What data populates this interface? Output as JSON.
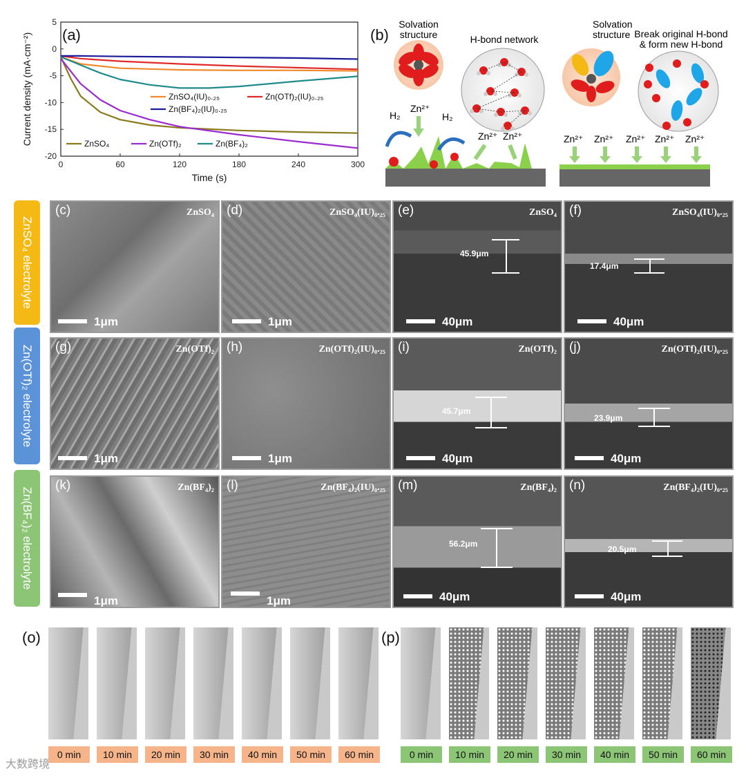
{
  "panels": {
    "a": "(a)",
    "b": "(b)",
    "c": "(c)",
    "d": "(d)",
    "e": "(e)",
    "f": "(f)",
    "g": "(g)",
    "h": "(h)",
    "i": "(i)",
    "j": "(j)",
    "k": "(k)",
    "l": "(l)",
    "m": "(m)",
    "n": "(n)",
    "o": "(o)",
    "p": "(p)"
  },
  "chart_data": {
    "type": "line",
    "xlabel": "Time (s)",
    "ylabel": "Current density (mA·cm⁻²)",
    "xlim": [
      0,
      300
    ],
    "ylim": [
      -20,
      5
    ],
    "xticks": [
      "0",
      "60",
      "120",
      "180",
      "240",
      "300"
    ],
    "yticks": [
      "5",
      "0",
      "-5",
      "-10",
      "-15",
      "-20"
    ],
    "legend": [
      "ZnSO₄(IU)₀.₂₅",
      "Zn(OTf)₂(IU)₀.₂₅",
      "Zn(BF₄)₂(IU)₀.₂₅",
      "ZnSO₄",
      "Zn(OTf)₂",
      "Zn(BF₄)₂"
    ],
    "series": [
      {
        "name": "ZnSO4(IU)0.25",
        "color": "#f0892a",
        "x": [
          0,
          20,
          60,
          120,
          180,
          240,
          300
        ],
        "y": [
          -1.5,
          -2.8,
          -3.6,
          -3.9,
          -4.0,
          -4.0,
          -4.1
        ]
      },
      {
        "name": "Zn(OTf)2(IU)0.25",
        "color": "#e02a2a",
        "x": [
          0,
          20,
          60,
          120,
          180,
          240,
          300
        ],
        "y": [
          -1.3,
          -1.8,
          -2.3,
          -2.8,
          -3.2,
          -3.5,
          -3.8
        ]
      },
      {
        "name": "Zn(BF4)2(IU)0.25",
        "color": "#1a1a9a",
        "x": [
          0,
          20,
          60,
          120,
          180,
          240,
          300
        ],
        "y": [
          -1.3,
          -1.3,
          -1.4,
          -1.5,
          -1.6,
          -1.7,
          -1.9
        ]
      },
      {
        "name": "ZnSO4",
        "color": "#8a7a1a",
        "x": [
          0,
          10,
          20,
          40,
          60,
          90,
          120,
          180,
          240,
          300
        ],
        "y": [
          -1.5,
          -5.5,
          -8.8,
          -11.8,
          -13.2,
          -14.2,
          -14.7,
          -15.2,
          -15.5,
          -15.7
        ]
      },
      {
        "name": "Zn(OTf)2",
        "color": "#9a2ad0",
        "x": [
          0,
          20,
          40,
          60,
          90,
          120,
          180,
          240,
          300
        ],
        "y": [
          -1.8,
          -6.5,
          -9.5,
          -11.5,
          -13.2,
          -14.5,
          -16.0,
          -17.3,
          -18.5
        ]
      },
      {
        "name": "Zn(BF4)2",
        "color": "#1e8a8a",
        "x": [
          0,
          20,
          40,
          60,
          90,
          120,
          150,
          180,
          240,
          300
        ],
        "y": [
          -1.5,
          -3.0,
          -4.5,
          -5.7,
          -6.7,
          -7.3,
          -7.3,
          -7.0,
          -6.0,
          -5.1
        ]
      }
    ]
  },
  "schematic": {
    "solv1": "Solvation\nstructure",
    "hbond": "H-bond network",
    "solv2": "Solvation\nstructure",
    "break": "Break original H-bond\n& form new H-bond",
    "h2": "H₂",
    "zn": "Zn²⁺"
  },
  "rows": [
    {
      "label": "ZnSO₄ electrolyte",
      "color": "#f5b915"
    },
    {
      "label": "Zn(OTf)₂ electrolyte",
      "color": "#5b92d8"
    },
    {
      "label": "Zn(BF₄)₂ electrolyte",
      "color": "#8dc576"
    }
  ],
  "sem": {
    "c": {
      "tag": "ZnSO₄",
      "scale": "1μm"
    },
    "d": {
      "tag": "ZnSO₄(IU)₀.₂₅",
      "scale": "1μm"
    },
    "e": {
      "tag": "ZnSO₄",
      "scale": "40μm",
      "thick": "45.9μm"
    },
    "f": {
      "tag": "ZnSO₄(IU)₀.₂₅",
      "scale": "40μm",
      "thick": "17.4μm"
    },
    "g": {
      "tag": "Zn(OTf)₂",
      "scale": "1μm"
    },
    "h": {
      "tag": "Zn(OTf)₂(IU)₀.₂₅",
      "scale": "1μm"
    },
    "i": {
      "tag": "Zn(OTf)₂",
      "scale": "40μm",
      "thick": "45.7μm"
    },
    "j": {
      "tag": "Zn(OTf)₂(IU)₀.₂₅",
      "scale": "40μm",
      "thick": "23.9μm"
    },
    "k": {
      "tag": "Zn(BF₄)₂",
      "scale": "1μm"
    },
    "l": {
      "tag": "Zn(BF₄)₂(IU)₀.₂₅",
      "scale": "1μm"
    },
    "m": {
      "tag": "Zn(BF₄)₂",
      "scale": "40μm",
      "thick": "56.2μm"
    },
    "n": {
      "tag": "Zn(BF₄)₂(IU)₀.₂₅",
      "scale": "40μm",
      "thick": "20.5μm"
    }
  },
  "times_o": [
    "0 min",
    "10 min",
    "20 min",
    "30 min",
    "40 min",
    "50 min",
    "60 min"
  ],
  "times_p": [
    "0 min",
    "10 min",
    "20 min",
    "30 min",
    "40 min",
    "50 min",
    "60 min"
  ],
  "colors": {
    "o_tag": "#f5b48a",
    "p_tag": "#8dc576"
  },
  "watermark": "大数跨境"
}
